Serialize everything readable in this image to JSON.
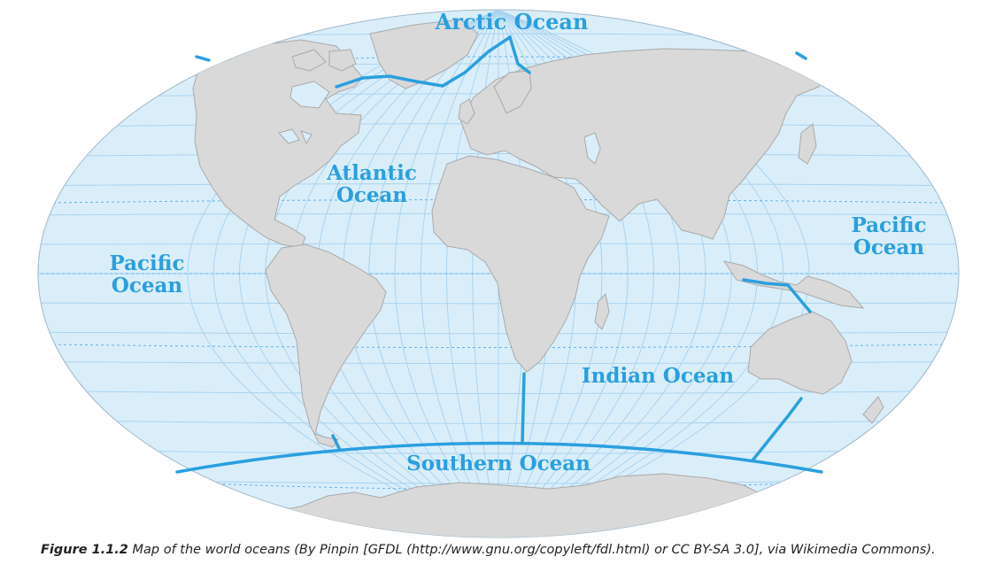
{
  "map": {
    "oceans": {
      "arctic": "Arctic Ocean",
      "atlantic_line1": "Atlantic",
      "atlantic_line2": "Ocean",
      "pacific_west_line1": "Pacific",
      "pacific_west_line2": "Ocean",
      "pacific_east_line1": "Pacific",
      "pacific_east_line2": "Ocean",
      "indian": "Indian Ocean",
      "southern": "Southern Ocean"
    },
    "colors": {
      "ocean_fill": "#daeefa",
      "land_fill": "#d9d9d9",
      "land_stroke": "#a9a9a9",
      "graticule": "#a9d3ee",
      "boundary_line": "#2a9fdf",
      "label": "#2a9fdf"
    }
  },
  "caption": {
    "figure_label": "Figure 1.1.2",
    "text": " Map of the world oceans (By Pinpin [GFDL (http://www.gnu.org/copyleft/fdl.html) or CC BY-SA 3.0], via Wikimedia Commons)."
  }
}
